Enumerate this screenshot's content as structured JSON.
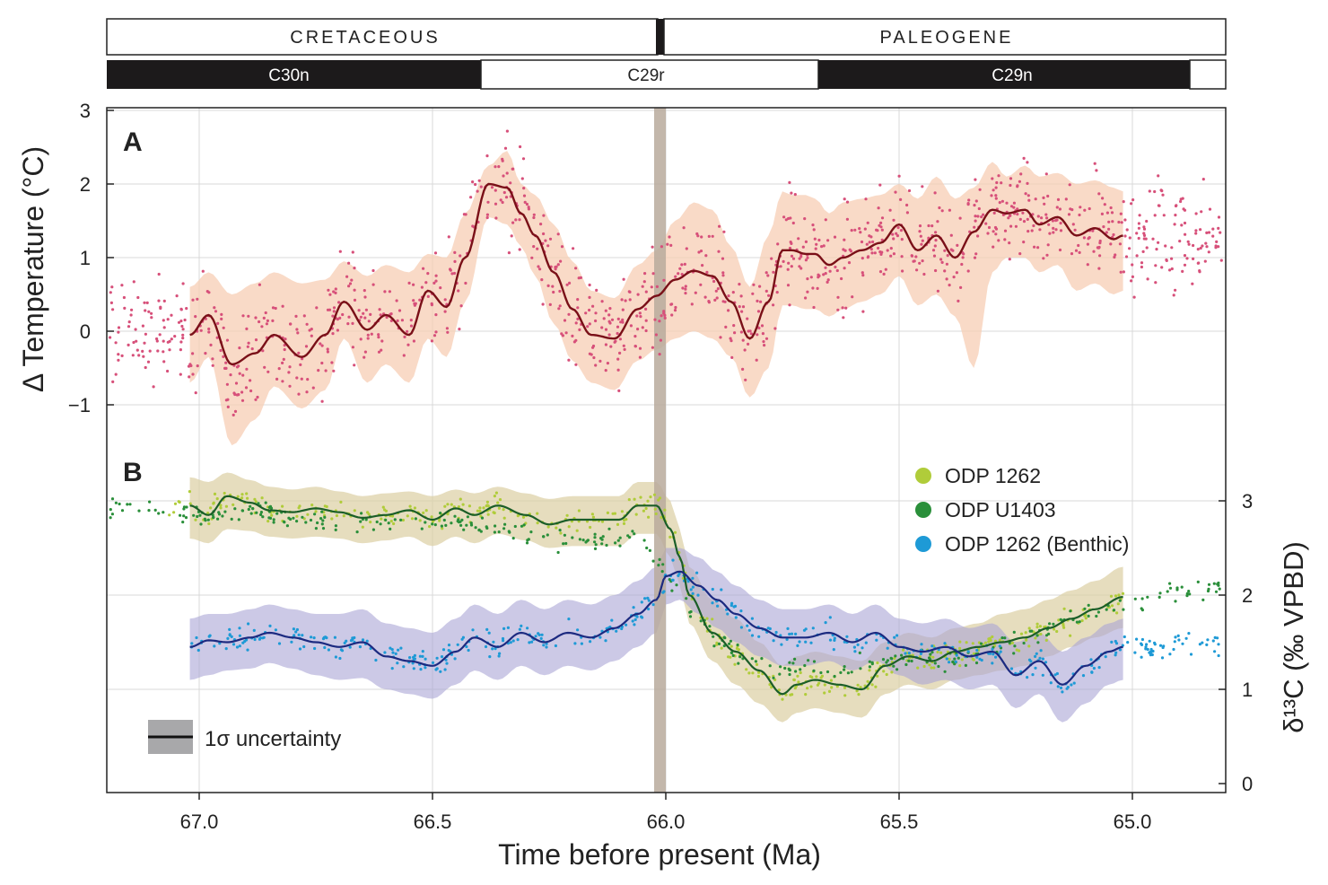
{
  "chart_data": {
    "type": "line",
    "xlabel": "Time before present (Ma)",
    "xlim": [
      67.2,
      64.8
    ],
    "x_reversed": true,
    "x_ticks": [
      "67.0",
      "66.5",
      "66.0",
      "65.5",
      "65.0"
    ],
    "x_tick_values": [
      67.0,
      66.5,
      66.0,
      65.5,
      65.0
    ],
    "boundary_age": 65.98,
    "periods": [
      {
        "name": "CRETACEOUS",
        "from": 67.2,
        "to": 66.0
      },
      {
        "name": "PALEOGENE",
        "from": 65.98,
        "to": 64.8
      }
    ],
    "magnetochrons": [
      {
        "name": "C30n",
        "from": 67.2,
        "to": 66.4,
        "polarity": "normal"
      },
      {
        "name": "C29r",
        "from": 66.4,
        "to": 65.68,
        "polarity": "reversed"
      },
      {
        "name": "C29n",
        "from": 65.68,
        "to": 64.88,
        "polarity": "normal"
      }
    ],
    "panel_a": {
      "label": "A",
      "ylabel": "Δ Temperature (°C)",
      "ylim": [
        -2.1,
        3.1
      ],
      "y_ticks": [
        "3",
        "2",
        "1",
        "0",
        "−1"
      ],
      "y_tick_values": [
        3,
        2,
        1,
        0,
        -1
      ],
      "smooth": {
        "name": "Δ Temperature",
        "color": "#7a1018",
        "x": [
          67.02,
          66.98,
          66.93,
          66.88,
          66.84,
          66.78,
          66.73,
          66.69,
          66.64,
          66.6,
          66.55,
          66.51,
          66.47,
          66.43,
          66.38,
          66.34,
          66.31,
          66.28,
          66.24,
          66.2,
          66.16,
          66.11,
          66.06,
          66.02,
          65.98,
          65.94,
          65.9,
          65.86,
          65.82,
          65.78,
          65.75,
          65.73,
          65.7,
          65.68,
          65.65,
          65.62,
          65.58,
          65.54,
          65.5,
          65.46,
          65.42,
          65.38,
          65.34,
          65.3,
          65.27,
          65.23,
          65.2,
          65.16,
          65.12,
          65.08,
          65.04,
          65.02
        ],
        "y": [
          -0.05,
          0.22,
          -0.45,
          -0.3,
          -0.05,
          -0.35,
          -0.05,
          0.4,
          0.02,
          0.22,
          -0.05,
          0.55,
          0.33,
          1.0,
          2.0,
          1.95,
          1.6,
          1.3,
          0.8,
          0.3,
          -0.05,
          -0.1,
          0.3,
          0.48,
          0.7,
          0.82,
          0.75,
          0.4,
          -0.1,
          0.4,
          1.1,
          1.1,
          1.05,
          1.05,
          0.9,
          1.0,
          1.1,
          1.2,
          1.45,
          1.1,
          1.3,
          1.0,
          1.35,
          1.65,
          1.6,
          1.65,
          1.45,
          1.55,
          1.3,
          1.4,
          1.25,
          1.3
        ],
        "band_upper": [
          0.6,
          0.8,
          0.5,
          0.65,
          0.8,
          0.65,
          0.7,
          0.95,
          0.75,
          0.9,
          0.8,
          1.05,
          1.0,
          1.6,
          2.25,
          2.45,
          2.0,
          1.85,
          1.45,
          0.95,
          0.55,
          0.45,
          0.9,
          1.1,
          1.5,
          1.75,
          1.65,
          1.15,
          0.6,
          1.3,
          1.9,
          1.85,
          1.85,
          1.8,
          1.6,
          1.75,
          1.8,
          1.85,
          2.0,
          1.8,
          2.1,
          1.8,
          1.95,
          2.3,
          2.1,
          2.25,
          2.1,
          2.15,
          2.0,
          2.05,
          1.95,
          1.9
        ],
        "band_lower": [
          -0.7,
          -0.35,
          -1.55,
          -1.2,
          -0.75,
          -1.05,
          -0.8,
          -0.1,
          -0.7,
          -0.45,
          -0.7,
          -0.1,
          -0.35,
          0.4,
          1.55,
          1.45,
          1.15,
          0.75,
          0.1,
          -0.4,
          -0.7,
          -0.8,
          -0.4,
          -0.25,
          -0.1,
          0.0,
          -0.1,
          -0.35,
          -0.9,
          -0.5,
          0.35,
          0.35,
          0.3,
          0.3,
          0.2,
          0.3,
          0.4,
          0.5,
          0.75,
          0.35,
          0.5,
          0.2,
          -0.5,
          0.8,
          1.0,
          1.0,
          0.8,
          0.9,
          0.55,
          0.65,
          0.5,
          0.55
        ]
      },
      "scatter": {
        "name": "Δ Temperature data",
        "color": "#d7507a"
      }
    },
    "panel_b": {
      "label": "B",
      "ylabel": "δ¹³C (‰ VPBD)",
      "ylim": [
        -0.1,
        3.75
      ],
      "y_ticks": [
        "3",
        "2",
        "1",
        "0"
      ],
      "y_tick_values": [
        3,
        2,
        1,
        0
      ],
      "series": [
        {
          "name": "ODP 1262",
          "color": "#b0cc3a",
          "smooth_color": "#1b5e28",
          "band_color": "#dccfa2",
          "x": [
            67.02,
            66.98,
            66.94,
            66.89,
            66.85,
            66.8,
            66.75,
            66.7,
            66.65,
            66.6,
            66.55,
            66.5,
            66.45,
            66.41,
            66.36,
            66.3,
            66.25,
            66.2,
            66.15,
            66.1,
            66.06,
            66.02,
            65.99,
            65.97,
            65.95,
            65.9,
            65.85,
            65.8,
            65.75,
            65.72,
            65.68,
            65.63,
            65.58,
            65.53,
            65.48,
            65.43,
            65.38,
            65.33,
            65.28,
            65.23,
            65.18,
            65.13,
            65.08,
            65.02
          ],
          "y": [
            2.95,
            2.85,
            3.05,
            2.98,
            2.9,
            2.88,
            2.92,
            2.88,
            2.82,
            2.85,
            2.9,
            2.8,
            2.92,
            2.85,
            2.95,
            2.85,
            2.75,
            2.8,
            2.8,
            2.8,
            2.95,
            2.95,
            2.7,
            2.4,
            2.0,
            1.6,
            1.4,
            1.2,
            0.95,
            1.05,
            1.1,
            1.05,
            1.0,
            1.25,
            1.35,
            1.3,
            1.4,
            1.45,
            1.5,
            1.55,
            1.65,
            1.75,
            1.85,
            1.98
          ],
          "band_upper": [
            3.25,
            3.2,
            3.3,
            3.22,
            3.15,
            3.12,
            3.15,
            3.1,
            3.05,
            3.08,
            3.1,
            3.05,
            3.12,
            3.08,
            3.15,
            3.08,
            3.02,
            3.05,
            3.05,
            3.05,
            3.2,
            3.2,
            3.0,
            2.7,
            2.3,
            1.95,
            1.75,
            1.5,
            1.25,
            1.35,
            1.4,
            1.35,
            1.3,
            1.5,
            1.6,
            1.55,
            1.65,
            1.7,
            1.8,
            1.85,
            1.95,
            2.05,
            2.15,
            2.3
          ],
          "band_lower": [
            2.6,
            2.55,
            2.7,
            2.68,
            2.62,
            2.6,
            2.62,
            2.6,
            2.55,
            2.58,
            2.62,
            2.52,
            2.62,
            2.55,
            2.65,
            2.58,
            2.5,
            2.52,
            2.52,
            2.52,
            2.65,
            2.65,
            2.4,
            2.1,
            1.7,
            1.3,
            1.05,
            0.85,
            0.65,
            0.75,
            0.8,
            0.75,
            0.7,
            0.95,
            1.05,
            1.0,
            1.1,
            1.15,
            1.2,
            1.25,
            1.35,
            1.45,
            1.55,
            1.65
          ]
        },
        {
          "name": "ODP U1403",
          "color": "#2a8f3a",
          "smooth_color": "#1b5e28",
          "band_color": "#dccfa2",
          "x": [
            67.2,
            67.1,
            67.05,
            66.95,
            66.85,
            66.75,
            66.65,
            66.55,
            66.45,
            66.35,
            66.25,
            66.15,
            66.06,
            66.0,
            65.95,
            65.9,
            65.85,
            65.8,
            65.75,
            65.7,
            65.65,
            65.6,
            65.55,
            65.5,
            65.45,
            65.4,
            65.35,
            65.3,
            65.25,
            65.2,
            65.15,
            65.1,
            65.05,
            65.0,
            64.95,
            64.9,
            64.85
          ],
          "y": [
            2.95,
            2.9,
            2.88,
            2.85,
            2.88,
            2.8,
            2.75,
            2.8,
            2.75,
            2.7,
            2.6,
            2.55,
            2.65,
            2.2,
            1.85,
            1.55,
            1.4,
            1.3,
            1.2,
            1.25,
            1.15,
            1.25,
            1.3,
            1.3,
            1.35,
            1.25,
            1.35,
            1.4,
            1.5,
            1.6,
            1.7,
            1.8,
            1.85,
            1.9,
            2.0,
            2.05,
            2.1
          ]
        },
        {
          "name": "ODP 1262 (Benthic)",
          "color": "#1e9ad6",
          "smooth_color": "#1c2a80",
          "band_color": "#aaa5d6",
          "x": [
            67.02,
            66.98,
            66.94,
            66.89,
            66.85,
            66.8,
            66.75,
            66.7,
            66.65,
            66.6,
            66.55,
            66.5,
            66.45,
            66.41,
            66.36,
            66.31,
            66.26,
            66.21,
            66.16,
            66.11,
            66.06,
            66.02,
            66.0,
            65.97,
            65.93,
            65.89,
            65.85,
            65.8,
            65.75,
            65.7,
            65.65,
            65.6,
            65.55,
            65.5,
            65.45,
            65.4,
            65.35,
            65.3,
            65.25,
            65.2,
            65.15,
            65.1,
            65.05,
            65.02,
            64.95,
            64.85
          ],
          "y": [
            1.45,
            1.52,
            1.5,
            1.55,
            1.6,
            1.55,
            1.5,
            1.45,
            1.5,
            1.35,
            1.3,
            1.25,
            1.4,
            1.55,
            1.45,
            1.6,
            1.5,
            1.6,
            1.55,
            1.65,
            1.8,
            1.95,
            2.2,
            2.25,
            2.1,
            1.95,
            1.8,
            1.65,
            1.55,
            1.55,
            1.6,
            1.5,
            1.6,
            1.45,
            1.4,
            1.45,
            1.35,
            1.4,
            1.15,
            1.3,
            1.05,
            1.25,
            1.4,
            1.45,
            1.45,
            1.5
          ],
          "band_upper": [
            1.75,
            1.8,
            1.8,
            1.85,
            1.9,
            1.85,
            1.8,
            1.8,
            1.85,
            1.7,
            1.65,
            1.6,
            1.75,
            1.9,
            1.8,
            1.95,
            1.85,
            1.95,
            1.9,
            2.0,
            2.15,
            2.3,
            2.5,
            2.5,
            2.4,
            2.25,
            2.1,
            1.95,
            1.85,
            1.85,
            1.9,
            1.8,
            1.9,
            1.75,
            1.7,
            1.75,
            1.65,
            1.7,
            1.5,
            1.6,
            1.4,
            1.55,
            1.7,
            1.75
          ],
          "band_lower": [
            1.1,
            1.15,
            1.2,
            1.22,
            1.28,
            1.22,
            1.15,
            1.1,
            1.12,
            1.0,
            0.95,
            0.9,
            1.05,
            1.2,
            1.1,
            1.25,
            1.15,
            1.25,
            1.2,
            1.3,
            1.45,
            1.6,
            1.9,
            1.95,
            1.8,
            1.65,
            1.5,
            1.35,
            1.25,
            1.25,
            1.3,
            1.2,
            1.3,
            1.15,
            1.05,
            1.1,
            1.0,
            1.05,
            0.8,
            0.95,
            0.65,
            0.85,
            1.05,
            1.1
          ]
        }
      ]
    },
    "uncertainty_legend": {
      "label": "1σ uncertainty"
    }
  }
}
